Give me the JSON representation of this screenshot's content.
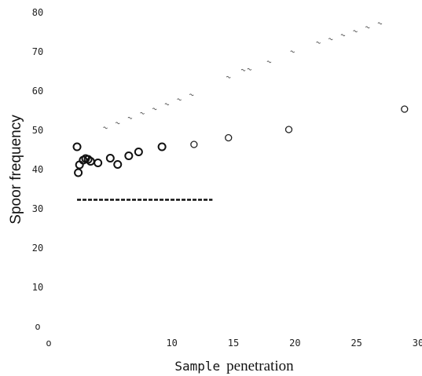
{
  "chart_data": {
    "type": "scatter",
    "ylabel": "Spoor frequency",
    "xlabel_part1": "Sample",
    "xlabel_part2": "penetration",
    "xlim": [
      0,
      30
    ],
    "ylim": [
      0,
      80
    ],
    "x_ticks": [
      "o",
      "10",
      "15",
      "20",
      "25",
      "30"
    ],
    "y_ticks": [
      "o",
      "10",
      "20",
      "30",
      "40",
      "50",
      "60",
      "70",
      "80"
    ],
    "grid": false,
    "series": [
      {
        "marker": "circle-large",
        "points": [
          [
            2.3,
            45.8
          ],
          [
            2.4,
            39.2
          ],
          [
            2.5,
            41.2
          ],
          [
            2.8,
            42.4
          ],
          [
            3.0,
            42.8
          ],
          [
            3.2,
            42.6
          ],
          [
            3.4,
            42.1
          ],
          [
            4.0,
            41.7
          ],
          [
            5.0,
            42.9
          ],
          [
            5.6,
            41.3
          ],
          [
            6.5,
            43.5
          ],
          [
            7.3,
            44.5
          ],
          [
            9.2,
            45.8
          ]
        ]
      },
      {
        "marker": "circle-small",
        "points": [
          [
            11.8,
            46.4
          ],
          [
            14.6,
            48.1
          ],
          [
            19.5,
            50.2
          ],
          [
            28.9,
            55.4
          ]
        ]
      },
      {
        "marker": "tilde",
        "points": [
          [
            4.6,
            50.8
          ],
          [
            5.6,
            52.0
          ],
          [
            6.6,
            53.3
          ],
          [
            7.6,
            54.5
          ],
          [
            8.6,
            55.6
          ],
          [
            9.6,
            56.8
          ],
          [
            10.6,
            58.0
          ],
          [
            11.6,
            59.2
          ],
          [
            14.6,
            63.7
          ],
          [
            15.8,
            65.5
          ],
          [
            16.3,
            65.7
          ],
          [
            17.9,
            67.6
          ],
          [
            19.8,
            70.2
          ],
          [
            21.9,
            72.5
          ],
          [
            22.9,
            73.4
          ],
          [
            23.9,
            74.4
          ],
          [
            24.9,
            75.4
          ],
          [
            25.9,
            76.4
          ],
          [
            26.9,
            77.4
          ]
        ]
      }
    ],
    "reference_line": {
      "style": "dashed",
      "y": 32.3,
      "x_start": 2.3,
      "x_end": 13.3
    }
  }
}
